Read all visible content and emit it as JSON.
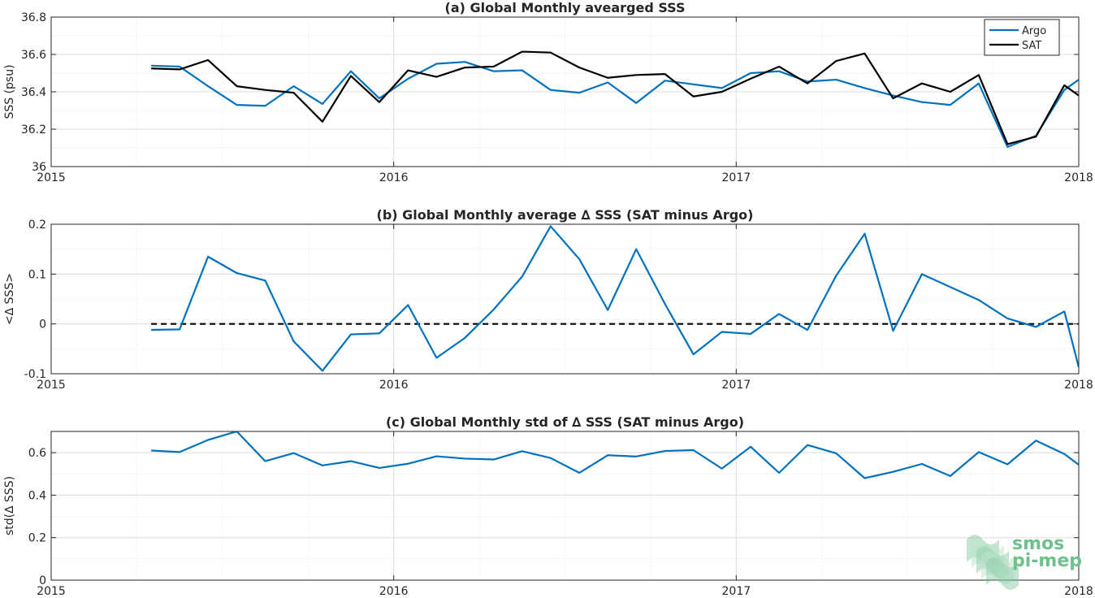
{
  "colors": {
    "argo": "#0072BD",
    "sat": "#000000",
    "grid": "#dedede",
    "axis": "#262626"
  },
  "chart_data": [
    {
      "type": "line",
      "title": "(a) Global Monthly avearged SSS",
      "xlabel": "",
      "ylabel": "SSS (psu)",
      "xlim": [
        2015,
        2018
      ],
      "ylim": [
        36,
        36.8
      ],
      "xticks": [
        2015,
        2016,
        2017,
        2018
      ],
      "xtick_labels": [
        "2015",
        "2016",
        "2017",
        "2018"
      ],
      "yticks": [
        36,
        36.2,
        36.4,
        36.6,
        36.8
      ],
      "ytick_labels": [
        "36",
        "36.2",
        "36.4",
        "36.6",
        "36.8"
      ],
      "grid": true,
      "legend": {
        "position": "top-right",
        "entries": [
          "Argo",
          "SAT"
        ]
      },
      "x": [
        2015.292,
        2015.375,
        2015.458,
        2015.542,
        2015.625,
        2015.708,
        2015.792,
        2015.875,
        2015.958,
        2016.042,
        2016.125,
        2016.208,
        2016.292,
        2016.375,
        2016.458,
        2016.542,
        2016.625,
        2016.708,
        2016.792,
        2016.875,
        2016.958,
        2017.042,
        2017.125,
        2017.208,
        2017.292,
        2017.375,
        2017.458,
        2017.542,
        2017.625,
        2017.708,
        2017.792,
        2017.875,
        2017.958,
        2018.0
      ],
      "series": [
        {
          "name": "Argo",
          "color": "#0072BD",
          "values": [
            36.54,
            36.535,
            36.43,
            36.33,
            36.325,
            36.43,
            36.335,
            36.51,
            36.365,
            36.47,
            36.55,
            36.56,
            36.51,
            36.515,
            36.41,
            36.395,
            36.45,
            36.34,
            36.46,
            36.44,
            36.42,
            36.5,
            36.51,
            36.455,
            36.465,
            36.42,
            36.38,
            36.345,
            36.33,
            36.445,
            36.105,
            36.165,
            36.41,
            36.465
          ]
        },
        {
          "name": "SAT",
          "color": "#000000",
          "values": [
            36.525,
            36.52,
            36.57,
            36.43,
            36.41,
            36.395,
            36.24,
            36.485,
            36.345,
            36.515,
            36.48,
            36.53,
            36.535,
            36.615,
            36.61,
            36.53,
            36.475,
            36.49,
            36.495,
            36.375,
            36.4,
            36.47,
            36.535,
            36.445,
            36.565,
            36.605,
            36.365,
            36.445,
            36.4,
            36.49,
            36.12,
            36.16,
            36.435,
            36.38
          ]
        }
      ]
    },
    {
      "type": "line",
      "title": "(b) Global Monthly average ∆ SSS (SAT minus Argo)",
      "xlabel": "",
      "ylabel": "<∆ SSS>",
      "xlim": [
        2015,
        2018
      ],
      "ylim": [
        -0.1,
        0.2
      ],
      "xticks": [
        2015,
        2016,
        2017,
        2018
      ],
      "xtick_labels": [
        "2015",
        "2016",
        "2017",
        "2018"
      ],
      "yticks": [
        -0.1,
        0,
        0.1,
        0.2
      ],
      "ytick_labels": [
        "-0.1",
        "0",
        "0.1",
        "0.2"
      ],
      "grid": true,
      "zero_line": {
        "value": 0,
        "from_x": 2015.292,
        "to_x": 2018.0,
        "style": "dashed"
      },
      "x": [
        2015.292,
        2015.375,
        2015.458,
        2015.542,
        2015.625,
        2015.708,
        2015.792,
        2015.875,
        2015.958,
        2016.042,
        2016.125,
        2016.208,
        2016.292,
        2016.375,
        2016.458,
        2016.542,
        2016.625,
        2016.708,
        2016.792,
        2016.875,
        2016.958,
        2017.042,
        2017.125,
        2017.208,
        2017.292,
        2017.375,
        2017.458,
        2017.542,
        2017.625,
        2017.708,
        2017.792,
        2017.875,
        2017.958,
        2018.0
      ],
      "series": [
        {
          "color": "#0072BD",
          "values": [
            -0.012,
            -0.011,
            0.135,
            0.102,
            0.087,
            -0.035,
            -0.094,
            -0.021,
            -0.019,
            0.038,
            -0.068,
            -0.028,
            0.029,
            0.095,
            0.196,
            0.13,
            0.028,
            0.15,
            0.04,
            -0.061,
            -0.016,
            -0.02,
            0.02,
            -0.012,
            0.097,
            0.181,
            -0.014,
            0.1,
            0.074,
            0.048,
            0.011,
            -0.006,
            0.025,
            -0.087
          ]
        }
      ]
    },
    {
      "type": "line",
      "title": "(c) Global Monthly std of ∆ SSS (SAT minus Argo)",
      "xlabel": "",
      "ylabel": "std(∆ SSS)",
      "xlim": [
        2015,
        2018
      ],
      "ylim": [
        0,
        0.7
      ],
      "xticks": [
        2015,
        2016,
        2017,
        2018
      ],
      "xtick_labels": [
        "2015",
        "2016",
        "2017",
        "2018"
      ],
      "yticks": [
        0,
        0.2,
        0.4,
        0.6
      ],
      "ytick_labels": [
        "0",
        "0.2",
        "0.4",
        "0.6"
      ],
      "grid": true,
      "x": [
        2015.292,
        2015.375,
        2015.458,
        2015.542,
        2015.625,
        2015.708,
        2015.792,
        2015.875,
        2015.958,
        2016.042,
        2016.125,
        2016.208,
        2016.292,
        2016.375,
        2016.458,
        2016.542,
        2016.625,
        2016.708,
        2016.792,
        2016.875,
        2016.958,
        2017.042,
        2017.125,
        2017.208,
        2017.292,
        2017.375,
        2017.458,
        2017.542,
        2017.625,
        2017.708,
        2017.792,
        2017.875,
        2017.958,
        2018.0
      ],
      "series": [
        {
          "color": "#0072BD",
          "values": [
            0.61,
            0.603,
            0.66,
            0.7,
            0.56,
            0.598,
            0.54,
            0.56,
            0.528,
            0.548,
            0.583,
            0.572,
            0.568,
            0.607,
            0.575,
            0.505,
            0.588,
            0.582,
            0.608,
            0.612,
            0.525,
            0.628,
            0.505,
            0.636,
            0.597,
            0.48,
            0.51,
            0.547,
            0.49,
            0.603,
            0.545,
            0.657,
            0.594,
            0.543
          ]
        }
      ]
    }
  ],
  "logo": {
    "line1": "smos",
    "line2": "pi-mep",
    "color": "#6fbf8f"
  }
}
